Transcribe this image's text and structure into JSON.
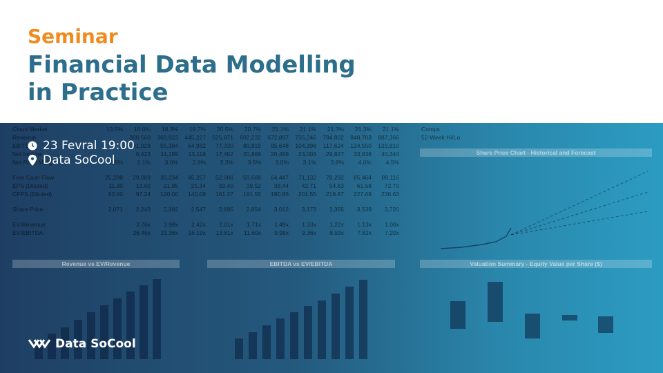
{
  "header": {
    "kicker": "Seminar",
    "title_line1": "Financial Data Modelling",
    "title_line2": "in Practice"
  },
  "event": {
    "datetime": "23 Fevral 19:00",
    "location": "Data SoCool"
  },
  "brand": {
    "name": "Data SoCool"
  },
  "colors": {
    "accent": "#f08c1e",
    "title": "#2c6e8c"
  },
  "icons": {
    "time": "clock-icon",
    "place": "location-pin-icon",
    "logo": "data-socool-logo-icon"
  },
  "background_table": {
    "rows": [
      {
        "label": "Cloud Market",
        "values": [
          "13.5%",
          "16.0%",
          "18.3%",
          "19.7%",
          "20.5%",
          "20.7%",
          "21.1%",
          "21.1%",
          "21.3%",
          "21.3%",
          "21.1%"
        ]
      },
      {
        "label": "Revenue",
        "values": [
          "",
          "300,560",
          "369,923",
          "445,227",
          "525,871",
          "602,232",
          "672,897",
          "735,246",
          "794,802",
          "848,703",
          "887,366"
        ]
      },
      {
        "label": "EBITDA",
        "values": [
          "",
          "41,928",
          "55,384",
          "64,932",
          "77,330",
          "89,815",
          "95,648",
          "104,398",
          "117,624",
          "124,550",
          "133,810"
        ]
      },
      {
        "label": "Net Income",
        "values": [
          "",
          "6,423",
          "11,199",
          "13,118",
          "17,462",
          "20,869",
          "20,499",
          "23,003",
          "29,827",
          "33,836",
          "40,344"
        ]
      },
      {
        "label": "Net Profit Margin",
        "values": [
          "2.5%",
          "2.1%",
          "3.0%",
          "2.9%",
          "3.3%",
          "3.5%",
          "3.0%",
          "3.1%",
          "3.8%",
          "4.0%",
          "4.5%"
        ]
      },
      {
        "gap": true
      },
      {
        "label": "Free Cash Flow",
        "values": [
          "25,298",
          "29,089",
          "35,234",
          "45,257",
          "52,988",
          "59,688",
          "64,447",
          "71,132",
          "78,292",
          "85,464",
          "89,116"
        ]
      },
      {
        "label": "EPS (Diluted)",
        "values": [
          "11.90",
          "12.60",
          "21.85",
          "25.34",
          "33.40",
          "39.52",
          "38.44",
          "42.71",
          "54.63",
          "61.58",
          "72.70"
        ]
      },
      {
        "label": "CFPS (Diluted)",
        "values": [
          "82.00",
          "97.24",
          "120.00",
          "140.08",
          "161.27",
          "181.55",
          "190.86",
          "201.55",
          "218.87",
          "227.69",
          "236.63"
        ]
      },
      {
        "gap": true
      },
      {
        "label": "Share Price",
        "values": [
          "2,071",
          "2,243",
          "2,392",
          "2,547",
          "2,695",
          "2,854",
          "3,012",
          "3,173",
          "3,355",
          "3,539",
          "3,720"
        ]
      },
      {
        "gap": true
      },
      {
        "label": "EV/Revenue",
        "values": [
          "",
          "3.76x",
          "2.98x",
          "2.42x",
          "2.01x",
          "1.71x",
          "1.49x",
          "1.33x",
          "1.22x",
          "1.13x",
          "1.08x"
        ]
      },
      {
        "label": "EV/EBITDA",
        "values": [
          "",
          "26.46x",
          "21.36x",
          "16.19x",
          "13.81x",
          "11.60x",
          "9.98x",
          "9.36x",
          "8.59x",
          "7.82x",
          "7.20x"
        ]
      }
    ]
  },
  "panels": {
    "rev_ev": "Revenue vs EV/Revenue",
    "ebitda_ev": "EBITDA vs EV/EBITDA",
    "share_price": "Share Price Chart - Historical and Forecast",
    "valuation": "Valuation Summary - Equity Value per Share ($)"
  },
  "charts": {
    "rev_bars": [
      0.22,
      0.3,
      0.38,
      0.47,
      0.56,
      0.64,
      0.72,
      0.8,
      0.88,
      0.95
    ],
    "ebitda_bars": [
      0.25,
      0.32,
      0.4,
      0.48,
      0.56,
      0.63,
      0.7,
      0.78,
      0.86,
      0.94
    ]
  }
}
